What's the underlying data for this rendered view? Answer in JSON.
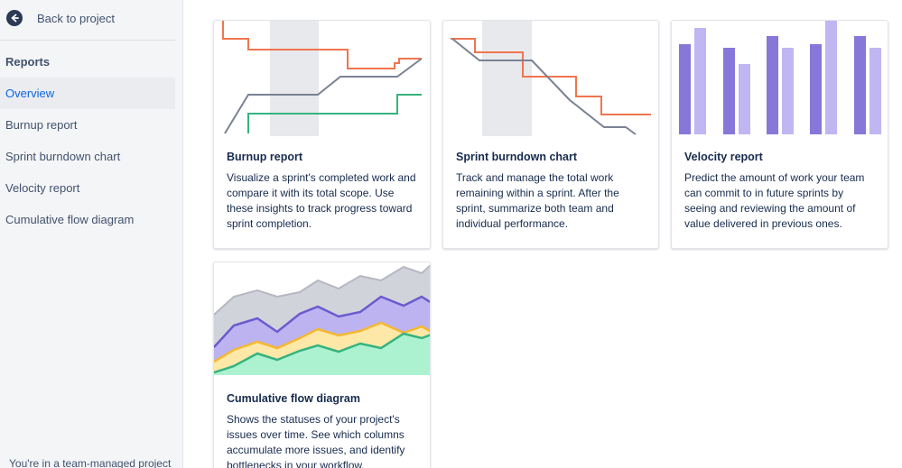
{
  "sidebar": {
    "back_label": "Back to project",
    "section_title": "Reports",
    "items": [
      {
        "label": "Overview",
        "active": true
      },
      {
        "label": "Burnup report",
        "active": false
      },
      {
        "label": "Sprint burndown chart",
        "active": false
      },
      {
        "label": "Velocity report",
        "active": false
      },
      {
        "label": "Cumulative flow diagram",
        "active": false
      }
    ],
    "footer": "You're in a team-managed project"
  },
  "cards": [
    {
      "title": "Burnup report",
      "description": "Visualize a sprint's completed work and compare it with its total scope. Use these insights to track progress toward sprint completion.",
      "illustration": "burnup-chart-illustration"
    },
    {
      "title": "Sprint burndown chart",
      "description": "Track and manage the total work remaining within a sprint. After the sprint, summarize both team and individual performance.",
      "illustration": "burndown-chart-illustration"
    },
    {
      "title": "Velocity report",
      "description": "Predict the amount of work your team can commit to in future sprints by seeing and reviewing the amount of value delivered in previous ones.",
      "illustration": "velocity-chart-illustration"
    },
    {
      "title": "Cumulative flow diagram",
      "description": "Shows the statuses of your project's issues over time. See which columns accumulate more issues, and identify bottlenecks in your workflow.",
      "illustration": "cumulative-flow-illustration"
    }
  ],
  "colors": {
    "scope": "#f0754f",
    "progress": "#7a8293",
    "done": "#36b37e",
    "highlight": "#e8e9ed",
    "velocity_committed": "#8777d9",
    "velocity_completed": "#c0b6f2",
    "active_nav": "#0c66e4"
  }
}
